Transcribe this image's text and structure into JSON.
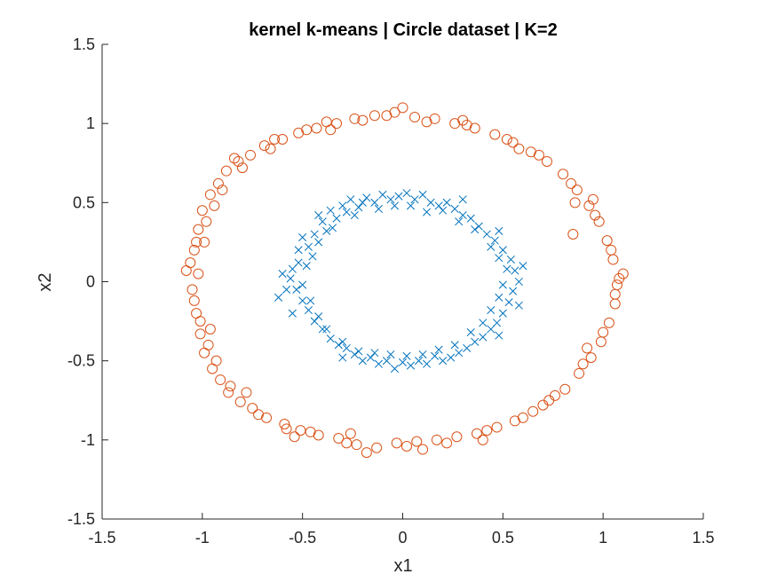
{
  "chart_data": {
    "type": "scatter",
    "title": "kernel k-means | Circle dataset | K=2",
    "xlabel": "x1",
    "ylabel": "x2",
    "xlim": [
      -1.5,
      1.5
    ],
    "ylim": [
      -1.5,
      1.5
    ],
    "xticks": [
      "-1.5",
      "-1",
      "-0.5",
      "0",
      "0.5",
      "1",
      "1.5"
    ],
    "yticks": [
      "-1.5",
      "-1",
      "-0.5",
      "0",
      "0.5",
      "1",
      "1.5"
    ],
    "grid": false,
    "legend": "none",
    "series": [
      {
        "marker": "x",
        "color": "#0072BD",
        "points": [
          [
            -0.58,
            -0.05
          ],
          [
            -0.55,
            0.08
          ],
          [
            -0.52,
            0.2
          ],
          [
            -0.5,
            0.28
          ],
          [
            -0.47,
            0.22
          ],
          [
            -0.44,
            0.3
          ],
          [
            -0.4,
            0.38
          ],
          [
            -0.36,
            0.45
          ],
          [
            -0.33,
            0.4
          ],
          [
            -0.3,
            0.48
          ],
          [
            -0.26,
            0.52
          ],
          [
            -0.22,
            0.47
          ],
          [
            -0.18,
            0.53
          ],
          [
            -0.14,
            0.5
          ],
          [
            -0.1,
            0.55
          ],
          [
            -0.06,
            0.52
          ],
          [
            -0.02,
            0.54
          ],
          [
            0.02,
            0.56
          ],
          [
            0.06,
            0.52
          ],
          [
            0.1,
            0.55
          ],
          [
            0.14,
            0.5
          ],
          [
            0.18,
            0.48
          ],
          [
            0.22,
            0.5
          ],
          [
            0.26,
            0.46
          ],
          [
            0.3,
            0.42
          ],
          [
            0.34,
            0.4
          ],
          [
            0.38,
            0.35
          ],
          [
            0.42,
            0.3
          ],
          [
            0.46,
            0.26
          ],
          [
            0.5,
            0.2
          ],
          [
            0.54,
            0.14
          ],
          [
            0.56,
            0.07
          ],
          [
            0.58,
            0.0
          ],
          [
            0.55,
            -0.06
          ],
          [
            0.53,
            -0.13
          ],
          [
            0.5,
            -0.2
          ],
          [
            0.47,
            -0.26
          ],
          [
            0.44,
            -0.3
          ],
          [
            0.4,
            -0.35
          ],
          [
            0.36,
            -0.38
          ],
          [
            0.32,
            -0.42
          ],
          [
            0.28,
            -0.45
          ],
          [
            0.24,
            -0.48
          ],
          [
            0.2,
            -0.5
          ],
          [
            0.16,
            -0.47
          ],
          [
            0.12,
            -0.52
          ],
          [
            0.08,
            -0.5
          ],
          [
            0.04,
            -0.53
          ],
          [
            0.0,
            -0.51
          ],
          [
            -0.04,
            -0.55
          ],
          [
            -0.08,
            -0.5
          ],
          [
            -0.12,
            -0.52
          ],
          [
            -0.16,
            -0.48
          ],
          [
            -0.2,
            -0.5
          ],
          [
            -0.24,
            -0.46
          ],
          [
            -0.28,
            -0.42
          ],
          [
            -0.32,
            -0.4
          ],
          [
            -0.36,
            -0.36
          ],
          [
            -0.4,
            -0.3
          ],
          [
            -0.44,
            -0.25
          ],
          [
            -0.47,
            -0.18
          ],
          [
            -0.5,
            -0.12
          ],
          [
            -0.53,
            -0.05
          ],
          [
            -0.56,
            0.02
          ],
          [
            -0.48,
            0.1
          ],
          [
            -0.45,
            0.16
          ],
          [
            -0.42,
            0.25
          ],
          [
            -0.38,
            0.32
          ],
          [
            -0.35,
            0.34
          ],
          [
            -0.28,
            0.44
          ],
          [
            -0.24,
            0.42
          ],
          [
            -0.2,
            0.5
          ],
          [
            -0.12,
            0.46
          ],
          [
            -0.04,
            0.48
          ],
          [
            0.04,
            0.48
          ],
          [
            0.12,
            0.44
          ],
          [
            0.2,
            0.45
          ],
          [
            0.28,
            0.38
          ],
          [
            0.36,
            0.33
          ],
          [
            0.44,
            0.22
          ],
          [
            0.48,
            0.15
          ],
          [
            0.52,
            0.08
          ],
          [
            0.5,
            -0.02
          ],
          [
            0.48,
            -0.1
          ],
          [
            0.44,
            -0.18
          ],
          [
            0.4,
            -0.26
          ],
          [
            0.34,
            -0.32
          ],
          [
            0.26,
            -0.4
          ],
          [
            0.18,
            -0.43
          ],
          [
            0.1,
            -0.46
          ],
          [
            0.02,
            -0.47
          ],
          [
            -0.06,
            -0.46
          ],
          [
            -0.14,
            -0.45
          ],
          [
            -0.22,
            -0.44
          ],
          [
            -0.3,
            -0.38
          ],
          [
            -0.38,
            -0.3
          ],
          [
            -0.42,
            -0.22
          ],
          [
            -0.46,
            -0.12
          ],
          [
            -0.5,
            -0.02
          ],
          [
            -0.52,
            0.12
          ],
          [
            -0.6,
            0.05
          ],
          [
            -0.62,
            -0.1
          ],
          [
            -0.55,
            -0.2
          ],
          [
            -0.42,
            0.42
          ],
          [
            0.3,
            0.52
          ],
          [
            0.48,
            0.32
          ],
          [
            0.6,
            0.1
          ],
          [
            0.58,
            -0.15
          ],
          [
            0.48,
            -0.34
          ],
          [
            -0.3,
            -0.48
          ]
        ]
      },
      {
        "marker": "o",
        "color": "#D95319",
        "points": [
          [
            -1.08,
            0.07
          ],
          [
            -1.05,
            -0.05
          ],
          [
            -1.04,
            0.2
          ],
          [
            -1.03,
            -0.2
          ],
          [
            -1.02,
            0.33
          ],
          [
            -1.01,
            -0.33
          ],
          [
            -1.0,
            0.45
          ],
          [
            -0.99,
            -0.45
          ],
          [
            -0.96,
            0.55
          ],
          [
            -0.95,
            -0.55
          ],
          [
            -0.92,
            0.62
          ],
          [
            -0.91,
            -0.62
          ],
          [
            -0.88,
            0.7
          ],
          [
            -0.87,
            -0.7
          ],
          [
            -0.82,
            0.76
          ],
          [
            -0.81,
            -0.76
          ],
          [
            -0.76,
            0.8
          ],
          [
            -0.75,
            -0.8
          ],
          [
            -0.69,
            0.86
          ],
          [
            -0.68,
            -0.86
          ],
          [
            -0.6,
            0.9
          ],
          [
            -0.59,
            -0.9
          ],
          [
            -0.52,
            0.94
          ],
          [
            -0.51,
            -0.94
          ],
          [
            -0.43,
            0.97
          ],
          [
            -0.42,
            -0.97
          ],
          [
            -0.33,
            1.0
          ],
          [
            -0.32,
            -0.99
          ],
          [
            -0.24,
            1.03
          ],
          [
            -0.23,
            -1.03
          ],
          [
            -0.14,
            1.05
          ],
          [
            -0.13,
            -1.05
          ],
          [
            -0.04,
            1.07
          ],
          [
            -0.03,
            -1.02
          ],
          [
            0.06,
            1.04
          ],
          [
            0.07,
            -1.01
          ],
          [
            0.16,
            1.03
          ],
          [
            0.17,
            -1.0
          ],
          [
            0.26,
            1.0
          ],
          [
            0.27,
            -0.98
          ],
          [
            0.36,
            0.97
          ],
          [
            0.37,
            -0.96
          ],
          [
            0.46,
            0.93
          ],
          [
            0.47,
            -0.92
          ],
          [
            0.55,
            0.88
          ],
          [
            0.56,
            -0.88
          ],
          [
            0.64,
            0.82
          ],
          [
            0.65,
            -0.82
          ],
          [
            0.72,
            0.76
          ],
          [
            0.73,
            -0.75
          ],
          [
            0.8,
            0.68
          ],
          [
            0.81,
            -0.68
          ],
          [
            0.87,
            0.58
          ],
          [
            0.88,
            -0.58
          ],
          [
            0.93,
            0.48
          ],
          [
            0.94,
            -0.48
          ],
          [
            0.98,
            0.38
          ],
          [
            0.99,
            -0.38
          ],
          [
            1.02,
            0.26
          ],
          [
            1.03,
            -0.26
          ],
          [
            1.05,
            0.14
          ],
          [
            1.06,
            -0.14
          ],
          [
            1.08,
            0.02
          ],
          [
            1.07,
            -0.02
          ],
          [
            -1.06,
            0.12
          ],
          [
            -1.03,
            0.25
          ],
          [
            -1.01,
            -0.25
          ],
          [
            -0.98,
            0.38
          ],
          [
            -0.97,
            -0.4
          ],
          [
            -0.94,
            0.48
          ],
          [
            -0.93,
            -0.5
          ],
          [
            -0.9,
            0.58
          ],
          [
            -0.86,
            -0.66
          ],
          [
            -0.8,
            0.72
          ],
          [
            -0.72,
            -0.84
          ],
          [
            -0.66,
            0.84
          ],
          [
            -0.58,
            -0.93
          ],
          [
            -0.48,
            0.96
          ],
          [
            -0.46,
            -0.95
          ],
          [
            -0.38,
            1.01
          ],
          [
            -0.28,
            -1.02
          ],
          [
            -0.2,
            1.02
          ],
          [
            -0.18,
            -1.08
          ],
          [
            -0.08,
            1.05
          ],
          [
            0.02,
            -1.04
          ],
          [
            0.12,
            1.01
          ],
          [
            0.22,
            -1.02
          ],
          [
            0.32,
            0.99
          ],
          [
            0.42,
            -0.94
          ],
          [
            0.52,
            0.9
          ],
          [
            0.6,
            -0.86
          ],
          [
            0.68,
            0.8
          ],
          [
            0.76,
            -0.72
          ],
          [
            0.84,
            0.62
          ],
          [
            0.9,
            -0.52
          ],
          [
            0.96,
            0.42
          ],
          [
            1.0,
            -0.32
          ],
          [
            1.04,
            0.2
          ],
          [
            1.06,
            -0.08
          ],
          [
            0.95,
            0.52
          ],
          [
            -1.04,
            -0.12
          ],
          [
            -1.02,
            0.05
          ],
          [
            -0.99,
            0.25
          ],
          [
            -0.96,
            -0.3
          ],
          [
            -0.84,
            0.78
          ],
          [
            -0.78,
            -0.7
          ],
          [
            -0.64,
            0.9
          ],
          [
            -0.54,
            -0.98
          ],
          [
            -0.36,
            0.96
          ],
          [
            -0.26,
            -0.96
          ],
          [
            0.0,
            1.1
          ],
          [
            0.1,
            -1.06
          ],
          [
            0.3,
            1.02
          ],
          [
            0.4,
            -1.0
          ],
          [
            0.58,
            0.84
          ],
          [
            0.7,
            -0.78
          ],
          [
            0.86,
            0.5
          ],
          [
            0.92,
            -0.42
          ],
          [
            1.1,
            0.05
          ],
          [
            0.85,
            0.3
          ]
        ]
      }
    ]
  }
}
